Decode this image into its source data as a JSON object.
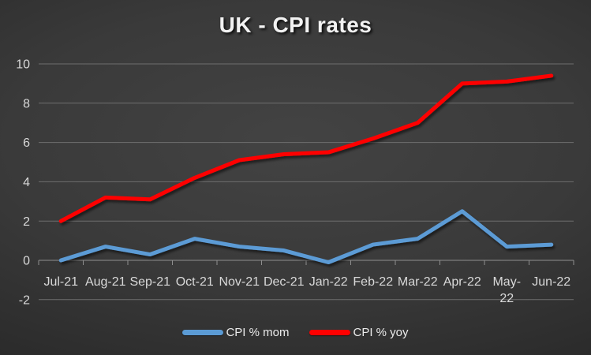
{
  "chart_data": {
    "type": "line",
    "title": "UK - CPI rates",
    "categories": [
      "Jul-21",
      "Aug-21",
      "Sep-21",
      "Oct-21",
      "Nov-21",
      "Dec-21",
      "Jan-22",
      "Feb-22",
      "Mar-22",
      "Apr-22",
      "May-22",
      "Jun-22"
    ],
    "xtick_display": [
      [
        "Jul-21"
      ],
      [
        "Aug-21"
      ],
      [
        "Sep-21"
      ],
      [
        "Oct-21"
      ],
      [
        "Nov-21"
      ],
      [
        "Dec-21"
      ],
      [
        "Jan-22"
      ],
      [
        "Feb-22"
      ],
      [
        "Mar-22"
      ],
      [
        "Apr-22"
      ],
      [
        "May-",
        "22"
      ],
      [
        "Jun-22"
      ]
    ],
    "series": [
      {
        "name": "CPI % mom",
        "color": "#5B9BD5",
        "values": [
          0.0,
          0.7,
          0.3,
          1.1,
          0.7,
          0.5,
          -0.1,
          0.8,
          1.1,
          2.5,
          0.7,
          0.8
        ]
      },
      {
        "name": "CPI % yoy",
        "color": "#FF0000",
        "values": [
          2.0,
          3.2,
          3.1,
          4.2,
          5.1,
          5.4,
          5.5,
          6.2,
          7.0,
          9.0,
          9.1,
          9.4
        ]
      }
    ],
    "xlabel": "",
    "ylabel": "",
    "ylim": [
      -2,
      10
    ],
    "yticks": [
      10,
      8,
      6,
      4,
      2,
      0,
      -2
    ],
    "grid": true,
    "legend_position": "bottom"
  },
  "legend": {
    "items": [
      {
        "label": "CPI % mom",
        "color": "#5B9BD5"
      },
      {
        "label": "CPI % yoy",
        "color": "#FF0000"
      }
    ]
  },
  "colors": {
    "gridline": "#6e6e6e",
    "axis_line": "#8f8f8f",
    "tick_label": "#d9d9d9",
    "title_text": "#f2f2f2"
  }
}
